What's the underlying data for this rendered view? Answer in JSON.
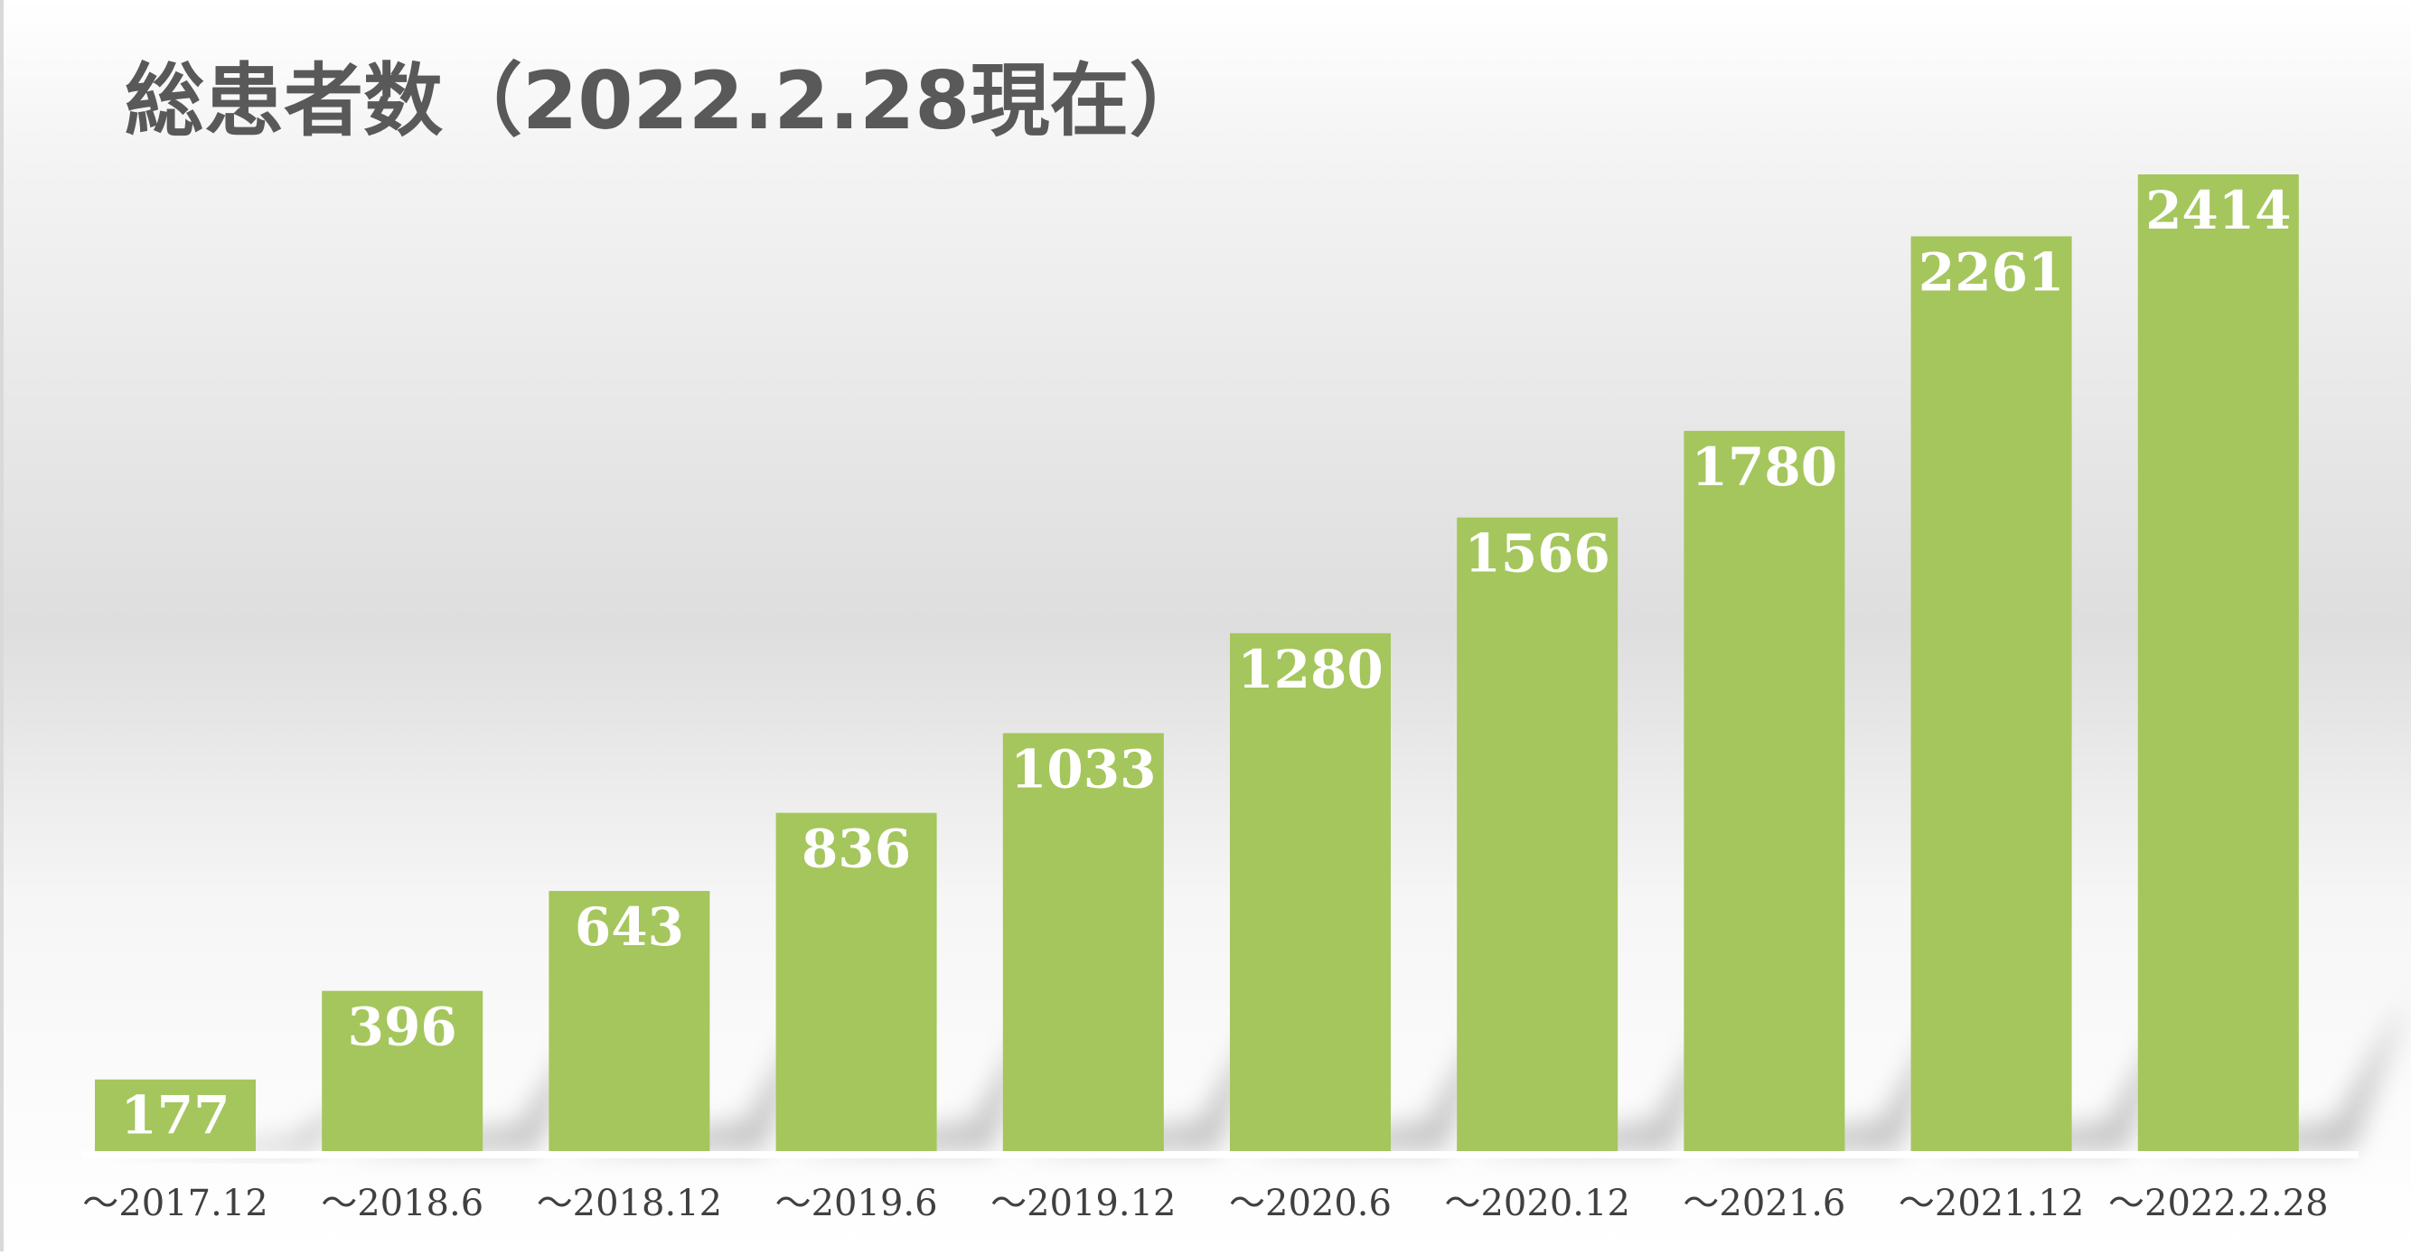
{
  "chart_data": {
    "type": "bar",
    "title": "総患者数（2022.2.28現在）",
    "categories": [
      "～2017.12",
      "～2018.6",
      "～2018.12",
      "～2019.6",
      "～2019.12",
      "～2020.6",
      "～2020.12",
      "～2021.6",
      "～2021.12",
      "～2022.2.28"
    ],
    "values": [
      177,
      396,
      643,
      836,
      1033,
      1280,
      1566,
      1780,
      2261,
      2414
    ],
    "data_labels": [
      "177",
      "396",
      "643",
      "836",
      "1033",
      "1280",
      "1566",
      "1780",
      "2261",
      "2414"
    ],
    "ylim": [
      0,
      2600
    ],
    "grid": false,
    "legend": "none",
    "colors": {
      "bar": "#a4c65c",
      "value_label": "#ffffff",
      "title": "#595959",
      "tick_label": "#404040"
    }
  }
}
